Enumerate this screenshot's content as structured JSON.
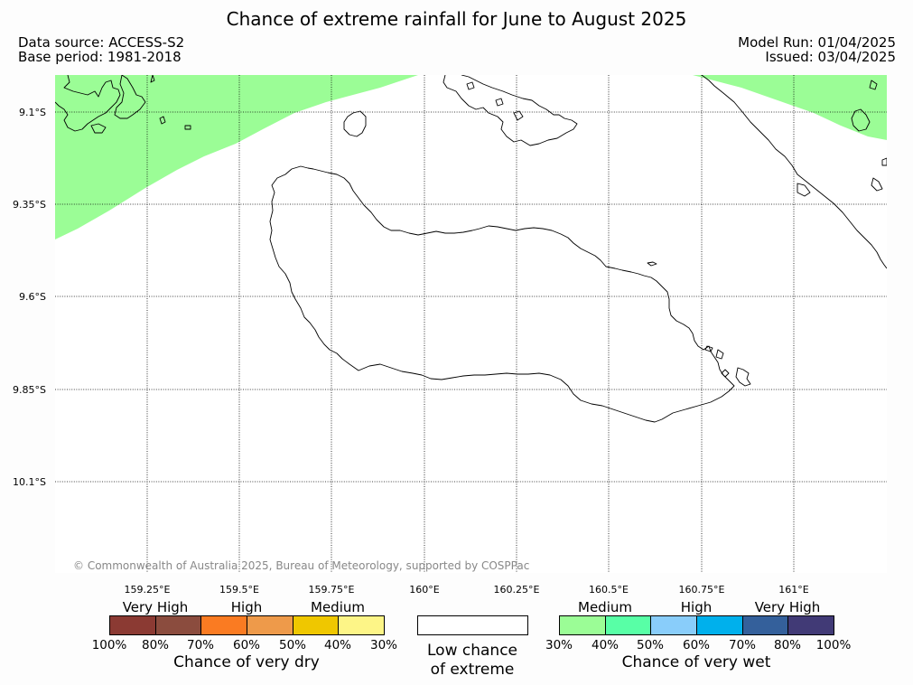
{
  "title": "Chance of extreme rainfall for June to August 2025",
  "data_source": "Data source: ACCESS-S2",
  "base_period": "Base period: 1981-2018",
  "model_run": "Model Run: 01/04/2025",
  "issued": "Issued: 03/04/2025",
  "map": {
    "land_color": "#ffffff",
    "grid": true,
    "latitudes": [
      "9.1°S",
      "9.35°S",
      "9.6°S",
      "9.85°S",
      "10.1°S"
    ],
    "longitudes": [
      "159.25°E",
      "159.5°E",
      "159.75°E",
      "160°E",
      "160.25°E",
      "160.5°E",
      "160.75°E",
      "161°E"
    ],
    "shading": [
      {
        "region": "north-west corner",
        "category": "30% - 40% chance of very wet",
        "color": "#9bfd96"
      },
      {
        "region": "north-east corner",
        "category": "30% - 40% chance of very wet",
        "color": "#9bfd96"
      }
    ],
    "copyright": "© Commonwealth of Australia 2025, Bureau of Meteorology, supported by COSPPac"
  },
  "legend": {
    "dry": {
      "categories": [
        "Very High",
        "High",
        "Medium"
      ],
      "colors": [
        "#8b3a33",
        "#8b4c3e",
        "#fa7b22",
        "#ee9a4a",
        "#efc700",
        "#fdf587"
      ],
      "ticks": [
        "100%",
        "80%",
        "70%",
        "60%",
        "50%",
        "40%",
        "30%"
      ],
      "caption": "Chance of very dry"
    },
    "low": {
      "color": "#ffffff",
      "caption_line1": "Low chance",
      "caption_line2": "of extreme"
    },
    "wet": {
      "categories": [
        "Medium",
        "High",
        "Very High"
      ],
      "colors": [
        "#9bfd96",
        "#58ffa6",
        "#89cdfa",
        "#00b0ec",
        "#34609b",
        "#413a76"
      ],
      "ticks": [
        "30%",
        "40%",
        "50%",
        "60%",
        "70%",
        "80%",
        "100%"
      ],
      "caption": "Chance of very wet"
    }
  }
}
